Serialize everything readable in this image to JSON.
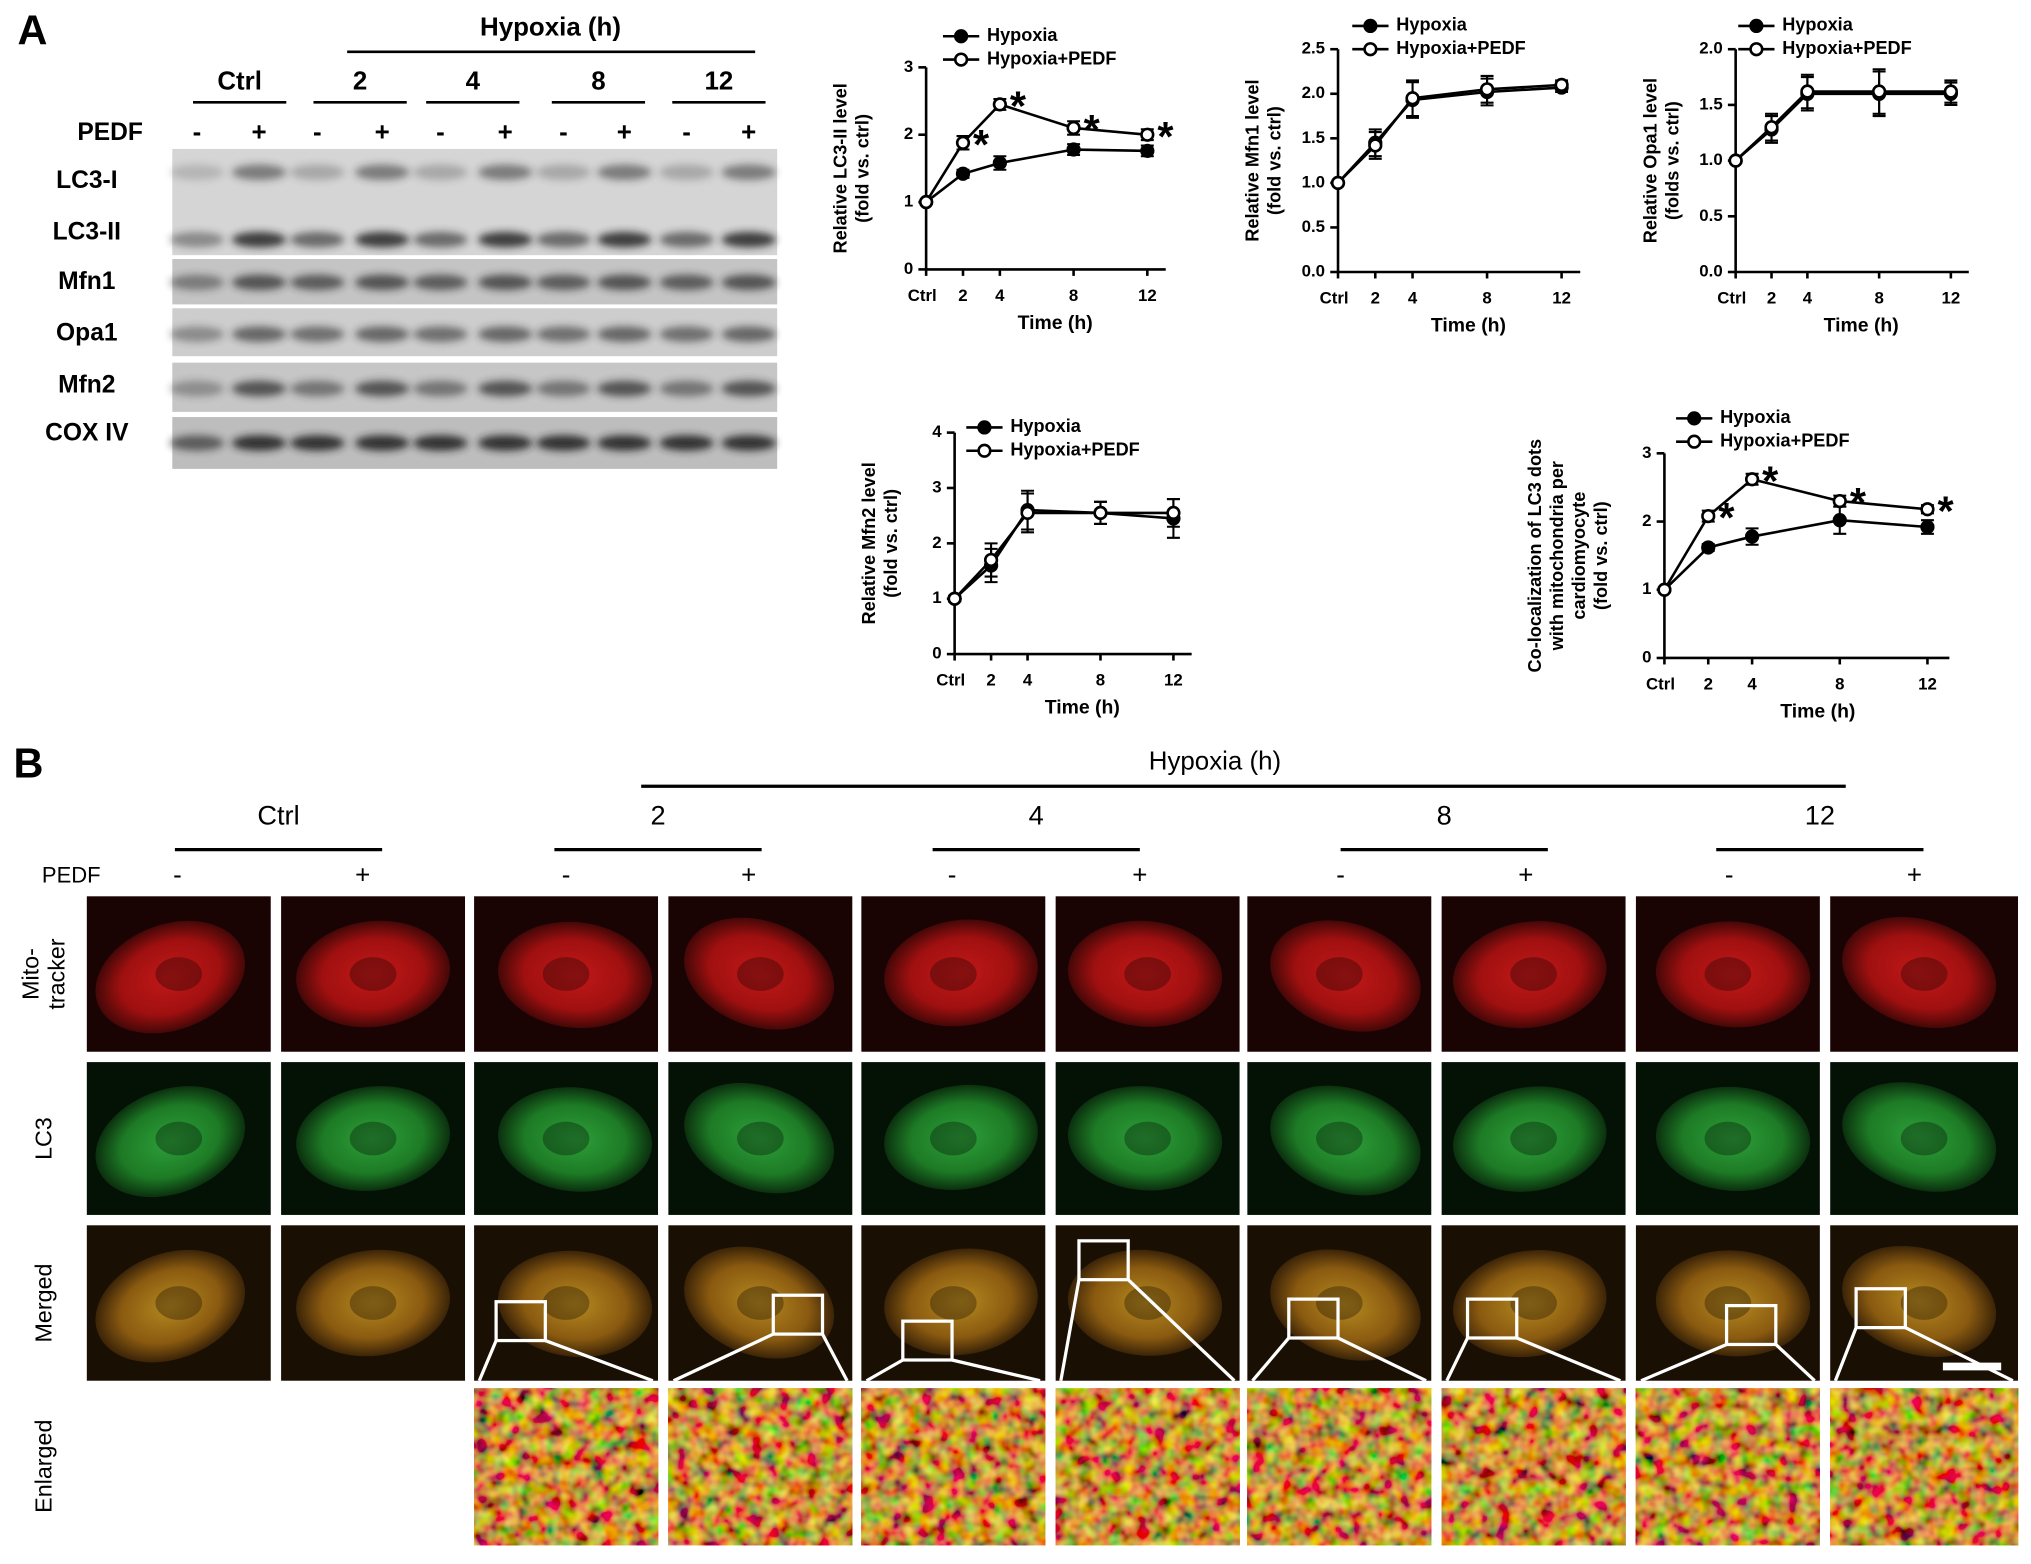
{
  "panel_a": {
    "label": "A",
    "header": "Hypoxia (h)",
    "groups": [
      "Ctrl",
      "2",
      "4",
      "8",
      "12"
    ],
    "treatment_label": "PEDF",
    "signs": [
      "-",
      "+"
    ],
    "rows": [
      "LC3-I",
      "LC3-II",
      "Mfn1",
      "Opa1",
      "Mfn2",
      "COX IV"
    ]
  },
  "chart_data": [
    {
      "type": "line",
      "ylabel": [
        "Relative LC3-II level",
        "(fold vs. ctrl)"
      ],
      "xlabel": "Time (h)",
      "x": [
        0,
        2,
        4,
        8,
        12
      ],
      "xlim": [
        0,
        13
      ],
      "xticks": [
        {
          "value": 0,
          "label": "Ctrl"
        },
        2,
        4,
        8,
        12
      ],
      "ylim": [
        0,
        3
      ],
      "yticks": [
        0,
        1,
        2,
        3
      ],
      "series": [
        {
          "name": "Hypoxia",
          "color": "#000000",
          "marker": "filled",
          "values": [
            1,
            1.42,
            1.58,
            1.78,
            1.76
          ],
          "errors": [
            0.03,
            0.06,
            0.1,
            0.08,
            0.08
          ]
        },
        {
          "name": "Hypoxia+PEDF",
          "color": "#000000",
          "marker": "open",
          "values": [
            1,
            1.88,
            2.45,
            2.1,
            2.0
          ],
          "errors": [
            0.03,
            0.1,
            0.08,
            0.1,
            0.08
          ]
        }
      ],
      "annotations": [
        {
          "text": "*",
          "x": 2
        },
        {
          "text": "*",
          "x": 4
        },
        {
          "text": "*",
          "x": 8
        },
        {
          "text": "*",
          "x": 12
        }
      ]
    },
    {
      "type": "line",
      "ylabel": [
        "Relative Mfn1 level",
        "(fold vs. ctrl)"
      ],
      "xlabel": "Time (h)",
      "x": [
        0,
        2,
        4,
        8,
        12
      ],
      "xlim": [
        0,
        13
      ],
      "xticks": [
        {
          "value": 0,
          "label": "Ctrl"
        },
        2,
        4,
        8,
        12
      ],
      "ylim": [
        0,
        2.5
      ],
      "yticks": [
        {
          "value": 0,
          "label": "0.0"
        },
        0.5,
        {
          "value": 1,
          "label": "1.0"
        },
        1.5,
        {
          "value": 2,
          "label": "2.0"
        },
        2.5
      ],
      "series": [
        {
          "name": "Hypoxia",
          "color": "#000000",
          "marker": "filled",
          "values": [
            1,
            1.45,
            1.93,
            2.02,
            2.07
          ],
          "errors": [
            0.02,
            0.15,
            0.2,
            0.15,
            0.05
          ]
        },
        {
          "name": "Hypoxia+PEDF",
          "color": "#000000",
          "marker": "open",
          "values": [
            1,
            1.42,
            1.95,
            2.05,
            2.1
          ],
          "errors": [
            0.02,
            0.15,
            0.2,
            0.15,
            0.05
          ]
        }
      ]
    },
    {
      "type": "line",
      "ylabel": [
        "Relative Opa1 level",
        "(folds vs. ctrl)"
      ],
      "xlabel": "Time (h)",
      "x": [
        0,
        2,
        4,
        8,
        12
      ],
      "xlim": [
        0,
        13
      ],
      "xticks": [
        {
          "value": 0,
          "label": "Ctrl"
        },
        2,
        4,
        8,
        12
      ],
      "ylim": [
        0,
        2
      ],
      "yticks": [
        {
          "value": 0,
          "label": "0.0"
        },
        0.5,
        {
          "value": 1,
          "label": "1.0"
        },
        1.5,
        {
          "value": 2,
          "label": "2.0"
        }
      ],
      "series": [
        {
          "name": "Hypoxia",
          "color": "#000000",
          "marker": "filled",
          "values": [
            1,
            1.28,
            1.6,
            1.6,
            1.6
          ],
          "errors": [
            0.02,
            0.12,
            0.15,
            0.2,
            0.1
          ]
        },
        {
          "name": "Hypoxia+PEDF",
          "color": "#000000",
          "marker": "open",
          "values": [
            1,
            1.3,
            1.62,
            1.62,
            1.62
          ],
          "errors": [
            0.02,
            0.12,
            0.15,
            0.2,
            0.1
          ]
        }
      ]
    },
    {
      "type": "line",
      "ylabel": [
        "Relative Mfn2 level",
        "(fold vs. ctrl)"
      ],
      "xlabel": "Time (h)",
      "x": [
        0,
        2,
        4,
        8,
        12
      ],
      "xlim": [
        0,
        13
      ],
      "xticks": [
        {
          "value": 0,
          "label": "Ctrl"
        },
        2,
        4,
        8,
        12
      ],
      "ylim": [
        0,
        4
      ],
      "yticks": [
        0,
        1,
        2,
        3,
        4
      ],
      "series": [
        {
          "name": "Hypoxia",
          "color": "#000000",
          "marker": "filled",
          "values": [
            1,
            1.6,
            2.6,
            2.55,
            2.45
          ],
          "errors": [
            0.05,
            0.3,
            0.35,
            0.2,
            0.35
          ]
        },
        {
          "name": "Hypoxia+PEDF",
          "color": "#000000",
          "marker": "open",
          "values": [
            1,
            1.7,
            2.55,
            2.55,
            2.55
          ],
          "errors": [
            0.05,
            0.3,
            0.35,
            0.2,
            0.25
          ]
        }
      ]
    },
    {
      "type": "line",
      "ylabel": [
        "Co-localization of LC3 dots",
        "with mitochondria per",
        "cardiomyocyte",
        "(fold vs. ctrl)"
      ],
      "xlabel": "Time (h)",
      "x": [
        0,
        2,
        4,
        8,
        12
      ],
      "xlim": [
        0,
        13
      ],
      "xticks": [
        {
          "value": 0,
          "label": "Ctrl"
        },
        2,
        4,
        8,
        12
      ],
      "ylim": [
        0,
        3
      ],
      "yticks": [
        0,
        1,
        2,
        3
      ],
      "series": [
        {
          "name": "Hypoxia",
          "color": "#000000",
          "marker": "filled",
          "values": [
            1,
            1.62,
            1.78,
            2.02,
            1.92
          ],
          "errors": [
            0.03,
            0.05,
            0.12,
            0.2,
            0.1
          ]
        },
        {
          "name": "Hypoxia+PEDF",
          "color": "#000000",
          "marker": "open",
          "values": [
            1,
            2.08,
            2.62,
            2.3,
            2.18
          ],
          "errors": [
            0.03,
            0.08,
            0.08,
            0.08,
            0.06
          ]
        }
      ],
      "annotations": [
        {
          "text": "*",
          "x": 2
        },
        {
          "text": "*",
          "x": 4
        },
        {
          "text": "*",
          "x": 8
        },
        {
          "text": "*",
          "x": 12
        }
      ]
    }
  ],
  "panel_b": {
    "label": "B",
    "header": "Hypoxia (h)",
    "groups": [
      "Ctrl",
      "2",
      "4",
      "8",
      "12"
    ],
    "treatment_label": "PEDF",
    "signs": [
      "-",
      "+"
    ],
    "rows": [
      [
        "Mito-",
        "tracker"
      ],
      [
        "LC3"
      ],
      [
        "Merged"
      ],
      [
        "Enlarged"
      ]
    ]
  }
}
